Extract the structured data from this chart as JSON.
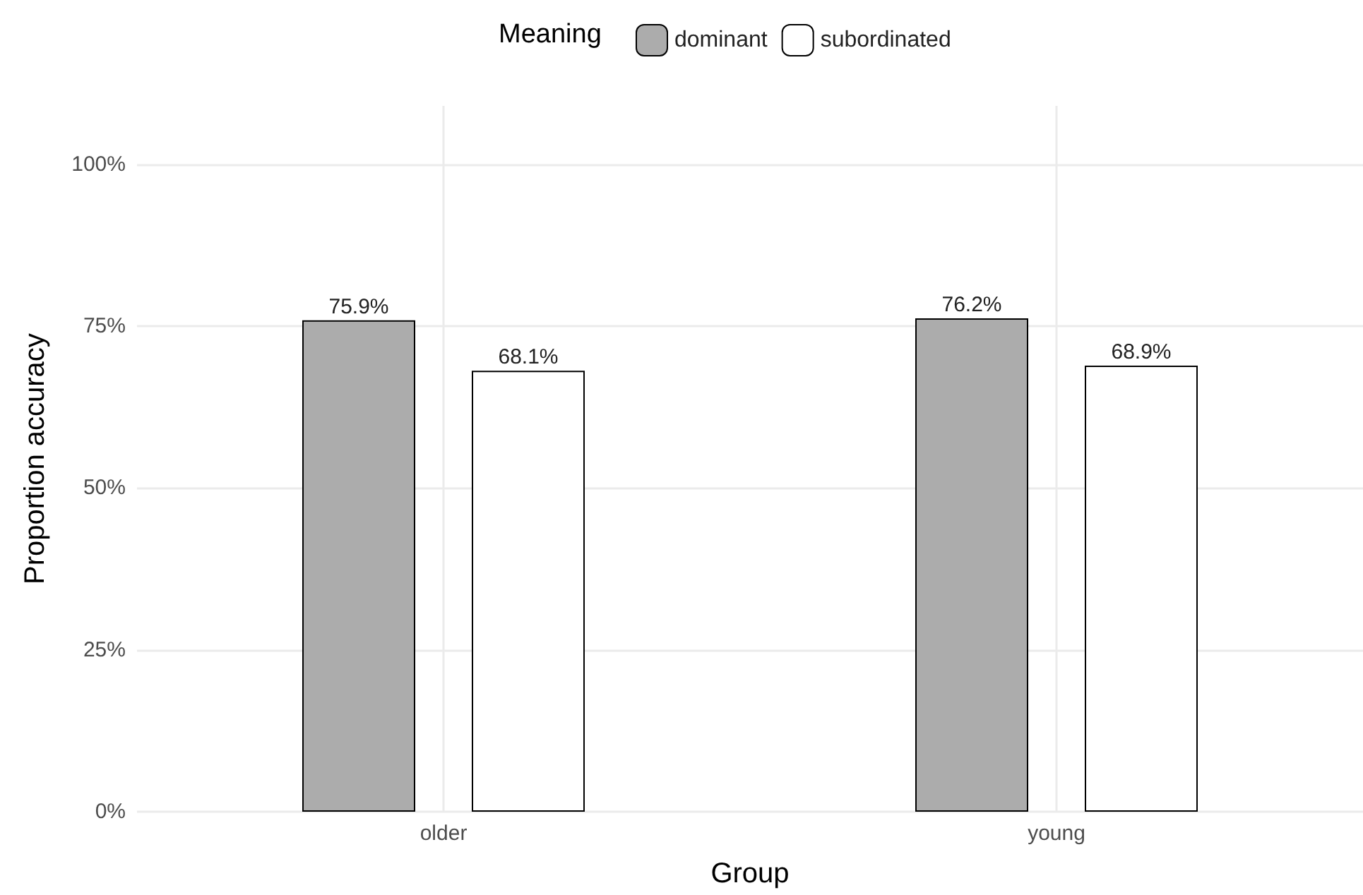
{
  "chart_data": {
    "type": "bar",
    "xlabel": "Group",
    "ylabel": "Proportion accuracy",
    "legend_title": "Meaning",
    "categories": [
      "older",
      "young"
    ],
    "series": [
      {
        "name": "dominant",
        "color": "#acacac",
        "values": [
          75.9,
          76.2
        ],
        "value_labels": [
          "75.9%",
          "76.2%"
        ]
      },
      {
        "name": "subordinated",
        "color": "#ffffff",
        "values": [
          68.1,
          68.9
        ],
        "value_labels": [
          "68.1%",
          "68.9%"
        ]
      }
    ],
    "ylim": [
      0,
      109
    ],
    "yticks": [
      {
        "value": 0,
        "label": "0%"
      },
      {
        "value": 25,
        "label": "25%"
      },
      {
        "value": 50,
        "label": "50%"
      },
      {
        "value": 75,
        "label": "75%"
      },
      {
        "value": 100,
        "label": "100%"
      }
    ],
    "grid": true,
    "legend": "top"
  }
}
